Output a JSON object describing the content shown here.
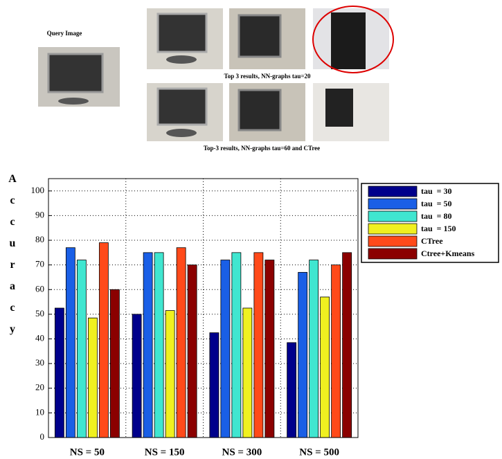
{
  "figure": {
    "query_label": "Query Image",
    "caption_1": "Top 3 results, NN-graphs tau=20",
    "caption_2": "Top-3 results, NN-graphs tau=60 and CTree"
  },
  "chart_data": {
    "type": "bar",
    "ylabel": "Accuracy",
    "categories": [
      "NS = 50",
      "NS = 150",
      "NS = 300",
      "NS = 500"
    ],
    "series": [
      {
        "name": "tau  = 30",
        "color": "#00008b",
        "values": [
          52.5,
          50,
          42.5,
          38.5
        ]
      },
      {
        "name": "tau  = 50",
        "color": "#1a5fe6",
        "values": [
          77,
          75,
          72,
          67
        ]
      },
      {
        "name": "tau  = 80",
        "color": "#40e6d0",
        "values": [
          72,
          75,
          75,
          72
        ]
      },
      {
        "name": "tau  = 150",
        "color": "#f0f020",
        "values": [
          48.5,
          51.5,
          52.5,
          57
        ]
      },
      {
        "name": "CTree",
        "color": "#ff4a1a",
        "values": [
          79,
          77,
          75,
          70
        ]
      },
      {
        "name": "Ctree+Kmeans",
        "color": "#8b0000",
        "values": [
          60,
          70,
          72,
          75
        ]
      }
    ],
    "ylim": [
      0,
      105
    ],
    "yticks": [
      0,
      10,
      20,
      30,
      40,
      50,
      60,
      70,
      80,
      90,
      100
    ],
    "grid": true,
    "legend": "right"
  }
}
